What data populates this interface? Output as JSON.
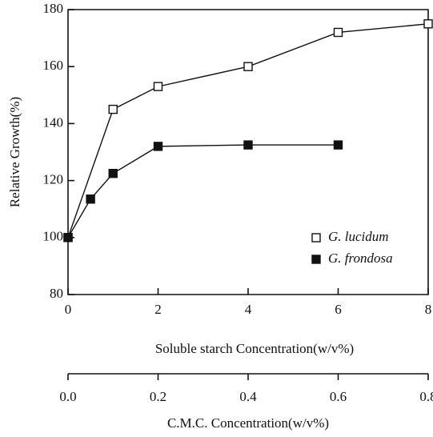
{
  "chart_data": {
    "type": "line",
    "ylabel": "Relative Growth(%)",
    "xlabel": "Soluble starch Concentration(w/v%)",
    "x2label": "C.M.C. Concentration(w/v%)",
    "xlim": [
      0,
      8
    ],
    "xticks": [
      0,
      2,
      4,
      6,
      8
    ],
    "x2lim": [
      0,
      0.8
    ],
    "x2ticks": [
      {
        "value": 0,
        "label": "0.0"
      },
      0.2,
      0.4,
      0.6,
      0.8
    ],
    "ylim": [
      80,
      180
    ],
    "yticks": [
      80,
      100,
      120,
      140,
      160,
      180
    ],
    "legend": "lower right",
    "series": [
      {
        "name": "G. lucidum",
        "color": "#111111",
        "marker": "open-square",
        "x": [
          0,
          1,
          2,
          4,
          6,
          8
        ],
        "values": [
          100,
          145,
          153,
          160,
          172,
          175
        ]
      },
      {
        "name": "G. frondosa",
        "color": "#111111",
        "marker": "filled-square",
        "x": [
          0,
          0.5,
          1,
          2,
          4,
          6
        ],
        "values": [
          100,
          113.5,
          122.5,
          132,
          132.5,
          132.5
        ]
      }
    ]
  }
}
